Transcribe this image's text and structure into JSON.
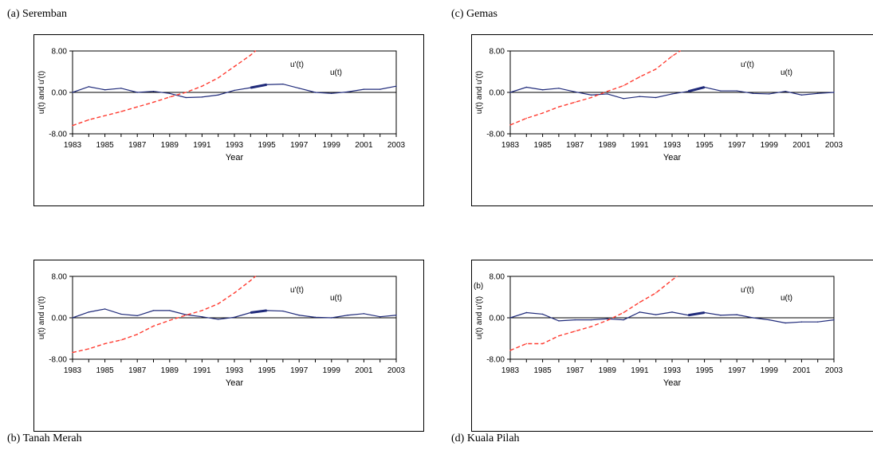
{
  "charts": [
    {
      "caption": "(a) Seremban",
      "series": [
        {
          "name": "u(t)",
          "color": "#1f2a7a",
          "x": [
            1983,
            1984,
            1985,
            1986,
            1987,
            1988,
            1989,
            1990,
            1991,
            1992,
            1993,
            1994,
            1995,
            1996,
            1997,
            1998,
            1999,
            2000,
            2001,
            2002,
            2003
          ],
          "y": [
            0.0,
            1.1,
            0.5,
            0.8,
            0.0,
            0.2,
            -0.2,
            -1.0,
            -0.9,
            -0.5,
            0.4,
            0.9,
            1.5,
            1.6,
            0.8,
            0.0,
            -0.2,
            0.1,
            0.6,
            0.6,
            1.2
          ]
        },
        {
          "name": "u'(t)",
          "color": "#ff3b30",
          "dashed": true,
          "x": [
            1983,
            1984,
            1985,
            1986,
            1987,
            1988,
            1989,
            1990,
            1991,
            1992,
            1993,
            1994,
            1994.3
          ],
          "y": [
            -6.4,
            -5.3,
            -4.5,
            -3.7,
            -2.8,
            -1.9,
            -0.9,
            0.0,
            1.2,
            2.8,
            5.0,
            7.2,
            8.0
          ]
        }
      ]
    },
    {
      "caption": "(b) Tanah Merah",
      "series": [
        {
          "name": "u(t)",
          "color": "#1f2a7a",
          "x": [
            1983,
            1984,
            1985,
            1986,
            1987,
            1988,
            1989,
            1990,
            1991,
            1992,
            1993,
            1994,
            1995,
            1996,
            1997,
            1998,
            1999,
            2000,
            2001,
            2002,
            2003
          ],
          "y": [
            0.0,
            1.1,
            1.7,
            0.7,
            0.4,
            1.4,
            1.4,
            0.6,
            0.2,
            -0.3,
            0.1,
            1.0,
            1.4,
            1.3,
            0.5,
            0.1,
            0.0,
            0.5,
            0.8,
            0.2,
            0.5
          ]
        },
        {
          "name": "u'(t)",
          "color": "#ff3b30",
          "dashed": true,
          "x": [
            1983,
            1984,
            1985,
            1986,
            1987,
            1988,
            1989,
            1990,
            1991,
            1992,
            1993,
            1994,
            1994.3
          ],
          "y": [
            -6.7,
            -6.0,
            -5.0,
            -4.3,
            -3.2,
            -1.6,
            -0.5,
            0.5,
            1.4,
            2.7,
            4.8,
            7.2,
            8.0
          ]
        }
      ]
    },
    {
      "caption": "(c) Gemas",
      "series": [
        {
          "name": "u(t)",
          "color": "#1f2a7a",
          "x": [
            1983,
            1984,
            1985,
            1986,
            1987,
            1988,
            1989,
            1990,
            1991,
            1992,
            1993,
            1994,
            1995,
            1996,
            1997,
            1998,
            1999,
            2000,
            2001,
            2002,
            2003
          ],
          "y": [
            0.0,
            1.0,
            0.5,
            0.8,
            0.1,
            -0.5,
            -0.3,
            -1.2,
            -0.8,
            -1.0,
            -0.3,
            0.2,
            1.0,
            0.3,
            0.3,
            -0.2,
            -0.3,
            0.2,
            -0.5,
            -0.2,
            0.0
          ]
        },
        {
          "name": "u'(t)",
          "color": "#ff3b30",
          "dashed": true,
          "x": [
            1983,
            1984,
            1985,
            1986,
            1987,
            1988,
            1989,
            1990,
            1991,
            1992,
            1993,
            1993.5
          ],
          "y": [
            -6.3,
            -5.0,
            -4.0,
            -2.8,
            -1.9,
            -1.0,
            0.2,
            1.3,
            3.0,
            4.5,
            7.0,
            8.0
          ]
        }
      ]
    },
    {
      "caption": "(d) Kuala Pilah",
      "series": [
        {
          "name": "u(t)",
          "color": "#1f2a7a",
          "x": [
            1983,
            1984,
            1985,
            1986,
            1987,
            1988,
            1989,
            1990,
            1991,
            1992,
            1993,
            1994,
            1995,
            1996,
            1997,
            1998,
            1999,
            2000,
            2001,
            2002,
            2003
          ],
          "y": [
            0.0,
            1.0,
            0.7,
            -0.6,
            -0.4,
            -0.4,
            -0.2,
            -0.4,
            1.1,
            0.6,
            1.1,
            0.5,
            1.0,
            0.5,
            0.6,
            0.0,
            -0.4,
            -1.0,
            -0.8,
            -0.8,
            -0.4
          ]
        },
        {
          "name": "u'(t)",
          "color": "#ff3b30",
          "dashed": true,
          "x": [
            1983,
            1984,
            1985,
            1986,
            1987,
            1988,
            1989,
            1990,
            1991,
            1992,
            1993,
            1993.3
          ],
          "y": [
            -6.3,
            -5.0,
            -5.0,
            -3.5,
            -2.6,
            -1.7,
            -0.5,
            1.0,
            3.0,
            4.8,
            7.3,
            8.0
          ]
        }
      ]
    }
  ],
  "common": {
    "xlabel": "Year",
    "ylabel": "u(t) and u'(t)",
    "ylim": [
      -8,
      8
    ],
    "xlim": [
      1983,
      2003
    ],
    "yticks": [
      "-8.00",
      "0.00",
      "8.00"
    ],
    "xticks": [
      "1983",
      "1985",
      "1987",
      "1989",
      "1991",
      "1993",
      "1995",
      "1997",
      "1999",
      "2001",
      "2003"
    ],
    "legend_labels": [
      "u'(t)",
      "u(t)"
    ],
    "stray_label_d": "(b)"
  }
}
